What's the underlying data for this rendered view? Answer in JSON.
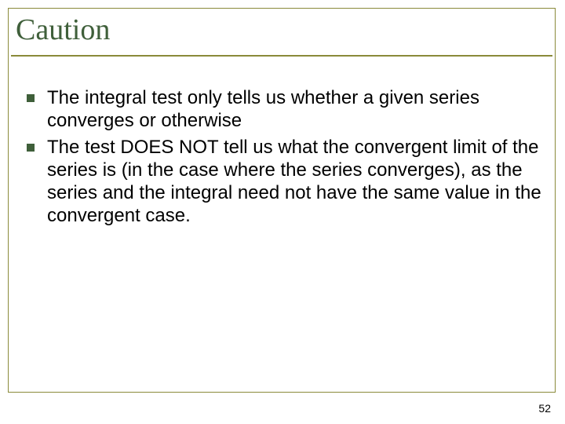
{
  "colors": {
    "frame_border": "#8a8a3a",
    "title_underline": "#8a8a3a",
    "title_text": "#3f5f3a",
    "bullet_marker": "#3f5f3a",
    "body_text": "#000000",
    "page_number": "#000000",
    "background": "#ffffff"
  },
  "title": "Caution",
  "bullets": [
    "The integral test only tells us whether a given series converges or otherwise",
    "The test DOES NOT tell us what the convergent limit of the series is (in the case where the series converges), as the series and the integral need not have the same value in the convergent case."
  ],
  "page_number": "52",
  "typography": {
    "title_fontsize": 38,
    "title_fontfamily": "Times New Roman",
    "body_fontsize": 24,
    "body_fontfamily": "Arial",
    "page_number_fontsize": 14
  },
  "layout": {
    "slide_width": 720,
    "slide_height": 540
  }
}
